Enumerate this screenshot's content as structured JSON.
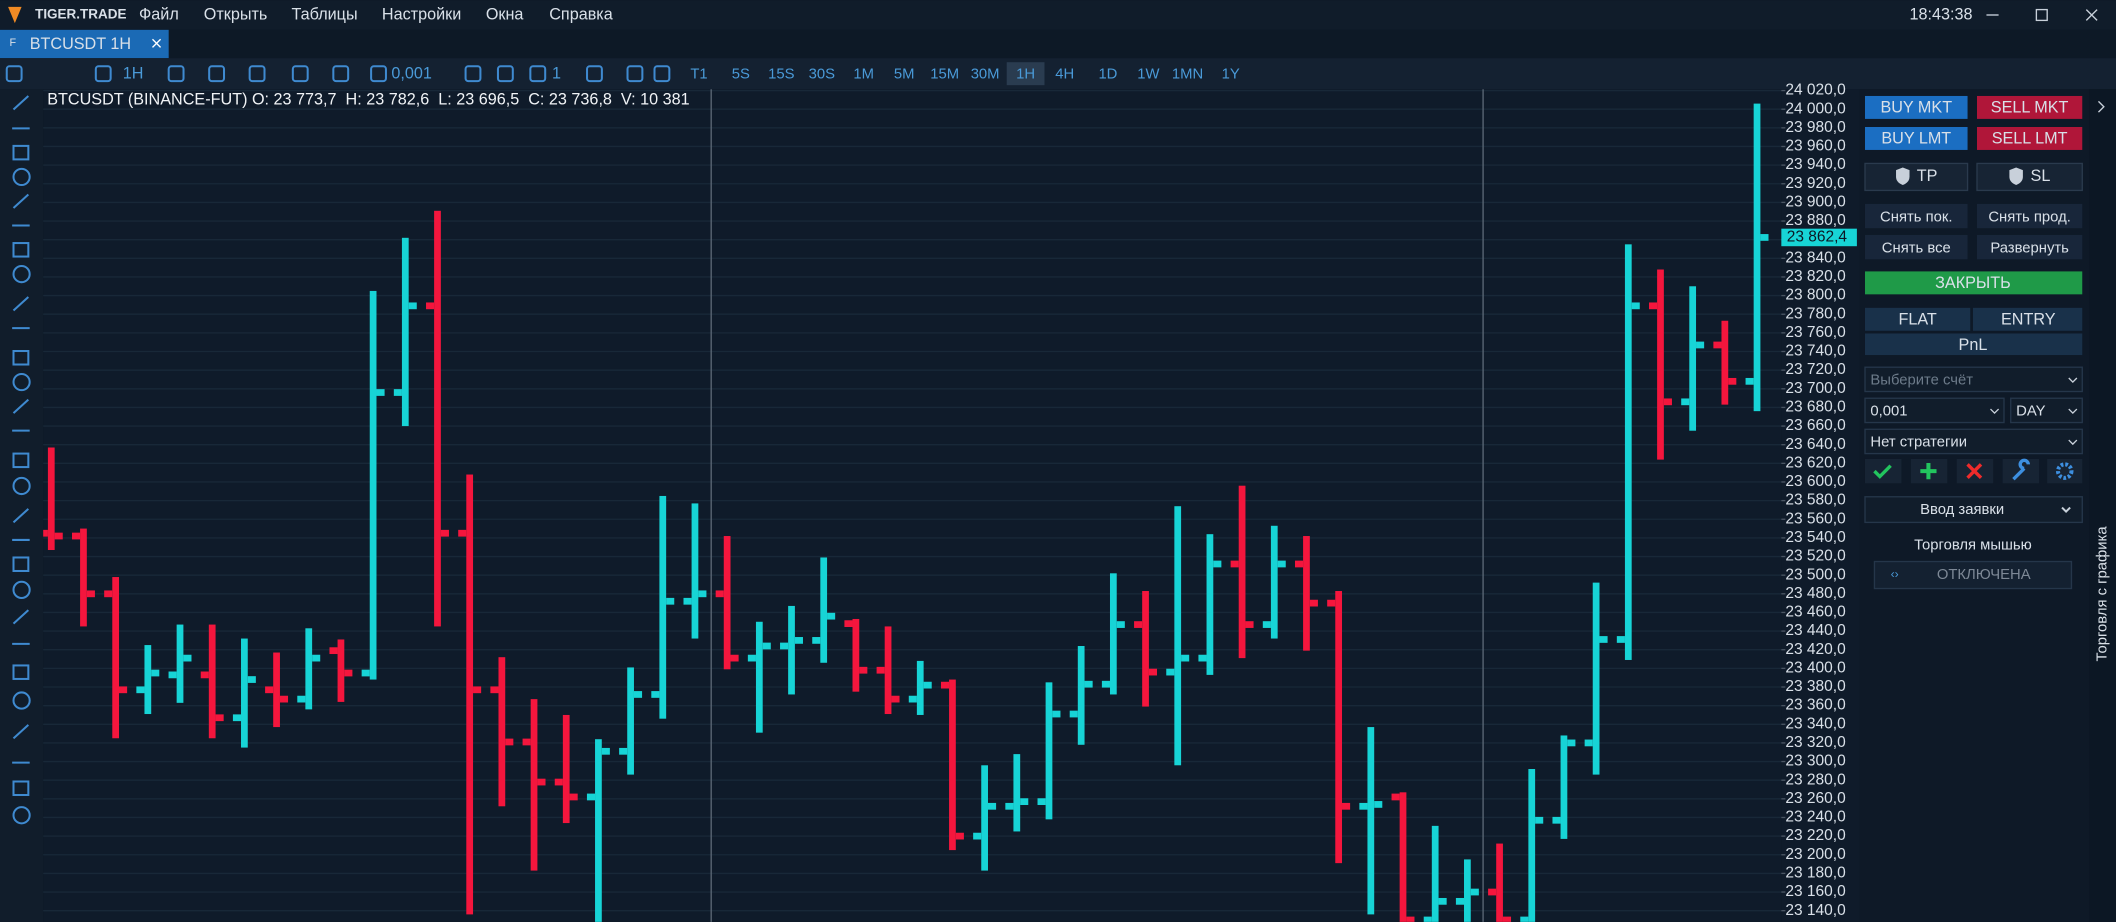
{
  "menu": {
    "logo": "TIGER.TRADE",
    "items": [
      "Файл",
      "Открыть",
      "Таблицы",
      "Настройки",
      "Окна",
      "Справка"
    ],
    "clock": "18:43:38"
  },
  "tab": {
    "title": "BTCUSDT 1H"
  },
  "toolbar": {
    "interval": "1H",
    "tick_size": "0,001",
    "multiplier": "1",
    "timeframes": [
      "T1",
      "5S",
      "15S",
      "30S",
      "1M",
      "5M",
      "15M",
      "30M",
      "1H",
      "4H",
      "1D",
      "1W",
      "1MN",
      "1Y"
    ],
    "active_timeframe": "1H"
  },
  "chart_data": {
    "type": "ohlc",
    "title": "BTCUSDT (BINANCE-FUT) O: 23 773,7  H: 23 782,6  L: 23 696,5  C: 23 736,8  V: 10 381",
    "open": [
      23545,
      23542,
      23480,
      23377,
      23393,
      23393,
      23347,
      23377,
      23367,
      23419,
      23395,
      23696,
      23789,
      23545,
      23377,
      23321,
      23278,
      23262,
      23311,
      23372,
      23472,
      23480,
      23411,
      23424,
      23430,
      23448,
      23398,
      23367,
      23382,
      23220,
      23252,
      23257,
      23351,
      23383,
      23447,
      23396,
      23411,
      23512,
      23447,
      23512,
      23470,
      23252,
      23262,
      23130,
      23150,
      23160,
      23130,
      23237,
      23320,
      23431,
      23789,
      23686,
      23747,
      23708
    ],
    "high": [
      23637,
      23550,
      23498,
      23425,
      23447,
      23447,
      23432,
      23417,
      23443,
      23431,
      23805,
      23862,
      23891,
      23608,
      23412,
      23367,
      23350,
      23324,
      23401,
      23585,
      23577,
      23542,
      23450,
      23467,
      23519,
      23453,
      23445,
      23408,
      23388,
      23296,
      23308,
      23385,
      23424,
      23502,
      23483,
      23574,
      23544,
      23596,
      23553,
      23542,
      23483,
      23337,
      23267,
      23231,
      23195,
      23212,
      23292,
      23328,
      23492,
      23855,
      23828,
      23810,
      23773,
      24006
    ],
    "low": [
      23527,
      23445,
      23325,
      23351,
      23363,
      23325,
      23315,
      23337,
      23356,
      23364,
      23388,
      23660,
      23445,
      23136,
      23252,
      23183,
      23234,
      23104,
      23286,
      23346,
      23432,
      23399,
      23331,
      23372,
      23406,
      23375,
      23351,
      23350,
      23205,
      23183,
      23225,
      23238,
      23318,
      23372,
      23359,
      23296,
      23393,
      23411,
      23432,
      23419,
      23191,
      23136,
      23104,
      23104,
      23104,
      23104,
      23104,
      23217,
      23286,
      23409,
      23624,
      23655,
      23683,
      23676
    ],
    "close": [
      23542,
      23480,
      23377,
      23395,
      23411,
      23347,
      23388,
      23367,
      23411,
      23395,
      23696,
      23789,
      23545,
      23377,
      23321,
      23278,
      23262,
      23311,
      23372,
      23472,
      23480,
      23411,
      23424,
      23430,
      23456,
      23398,
      23367,
      23382,
      23220,
      23252,
      23257,
      23351,
      23383,
      23447,
      23396,
      23411,
      23512,
      23447,
      23512,
      23470,
      23252,
      23254,
      23130,
      23150,
      23160,
      23130,
      23237,
      23320,
      23431,
      23789,
      23686,
      23747,
      23708,
      23862.4
    ],
    "up_color": "#17d4d6",
    "down_color": "#f4163d",
    "ylim": [
      23128,
      24020
    ],
    "yticks": [
      {
        "value": 24020,
        "label": "24 020,0"
      },
      {
        "value": 24000,
        "label": "24 000,0"
      },
      {
        "value": 23980,
        "label": "23 980,0"
      },
      {
        "value": 23960,
        "label": "23 960,0"
      },
      {
        "value": 23940,
        "label": "23 940,0"
      },
      {
        "value": 23920,
        "label": "23 920,0"
      },
      {
        "value": 23900,
        "label": "23 900,0"
      },
      {
        "value": 23880,
        "label": "23 880,0"
      },
      {
        "value": 23860,
        "label": "23 860,0"
      },
      {
        "value": 23840,
        "label": "23 840,0"
      },
      {
        "value": 23820,
        "label": "23 820,0"
      },
      {
        "value": 23800,
        "label": "23 800,0"
      },
      {
        "value": 23780,
        "label": "23 780,0"
      },
      {
        "value": 23760,
        "label": "23 760,0"
      },
      {
        "value": 23740,
        "label": "23 740,0"
      },
      {
        "value": 23720,
        "label": "23 720,0"
      },
      {
        "value": 23700,
        "label": "23 700,0"
      },
      {
        "value": 23680,
        "label": "23 680,0"
      },
      {
        "value": 23660,
        "label": "23 660,0"
      },
      {
        "value": 23640,
        "label": "23 640,0"
      },
      {
        "value": 23620,
        "label": "23 620,0"
      },
      {
        "value": 23600,
        "label": "23 600,0"
      },
      {
        "value": 23580,
        "label": "23 580,0"
      },
      {
        "value": 23560,
        "label": "23 560,0"
      },
      {
        "value": 23540,
        "label": "23 540,0"
      },
      {
        "value": 23520,
        "label": "23 520,0"
      },
      {
        "value": 23500,
        "label": "23 500,0"
      },
      {
        "value": 23480,
        "label": "23 480,0"
      },
      {
        "value": 23460,
        "label": "23 460,0"
      },
      {
        "value": 23440,
        "label": "23 440,0"
      },
      {
        "value": 23420,
        "label": "23 420,0"
      },
      {
        "value": 23400,
        "label": "23 400,0"
      },
      {
        "value": 23380,
        "label": "23 380,0"
      },
      {
        "value": 23360,
        "label": "23 360,0"
      },
      {
        "value": 23340,
        "label": "23 340,0"
      },
      {
        "value": 23320,
        "label": "23 320,0"
      },
      {
        "value": 23300,
        "label": "23 300,0"
      },
      {
        "value": 23280,
        "label": "23 280,0"
      },
      {
        "value": 23260,
        "label": "23 260,0"
      },
      {
        "value": 23240,
        "label": "23 240,0"
      },
      {
        "value": 23220,
        "label": "23 220,0"
      },
      {
        "value": 23200,
        "label": "23 200,0"
      },
      {
        "value": 23180,
        "label": "23 180,0"
      },
      {
        "value": 23160,
        "label": "23 160,0"
      },
      {
        "value": 23140,
        "label": "23 140,0"
      }
    ],
    "grid": true,
    "last_price": {
      "value": 23862.4,
      "label": "23 862,4"
    }
  },
  "panel": {
    "buy_market": "BUY MKT",
    "sell_market": "SELL MKT",
    "buy_limit": "BUY LMT",
    "sell_limit": "SELL LMT",
    "take_profit": "TP",
    "stop_loss": "SL",
    "cancel_buys": "Снять пок.",
    "cancel_sells": "Снять прод.",
    "cancel_all": "Снять все",
    "reverse": "Развернуть",
    "close": "ЗАКРЫТЬ",
    "flat": "FLAT",
    "entry": "ENTRY",
    "pnl": "PnL",
    "account_placeholder": "Выберите счёт",
    "quantity": "0,001",
    "time_in_force": "DAY",
    "strategy": "Нет стратегии",
    "order_entry": "Ввод заявки",
    "mouse_trading": "Торговля мышью",
    "mouse_trading_state": "ОТКЛЮЧЕНА",
    "side_tab": "Торговля с графика"
  }
}
